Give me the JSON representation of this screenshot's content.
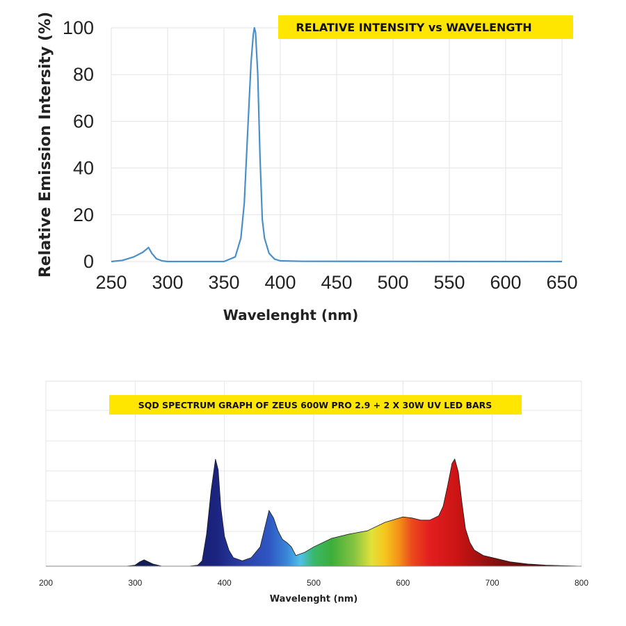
{
  "chart_data": [
    {
      "type": "line",
      "title": "RELATIVE INTENSITY vs WAVELENGTH",
      "xlabel": "Wavelenght (nm)",
      "ylabel": "Relative Emission Intersity (%)",
      "xlim": [
        250,
        650
      ],
      "ylim": [
        0,
        100
      ],
      "xticks": [
        "250",
        "300",
        "350",
        "400",
        "450",
        "500",
        "550",
        "600",
        "650"
      ],
      "yticks": [
        "0",
        "20",
        "40",
        "60",
        "80",
        "100"
      ],
      "grid": true,
      "colors": {
        "line": "#4a90c8",
        "banner": "#ffe600"
      },
      "series": [
        {
          "x": [
            250,
            260,
            270,
            278,
            283,
            286,
            290,
            295,
            300,
            320,
            350,
            360,
            365,
            368,
            371,
            374,
            376,
            377,
            378,
            380,
            382,
            384,
            386,
            390,
            395,
            400,
            420,
            500,
            650
          ],
          "values": [
            0,
            0.5,
            2,
            4,
            6,
            3.5,
            1.2,
            0.3,
            0,
            0,
            0,
            2,
            10,
            25,
            55,
            85,
            97,
            100,
            98,
            80,
            45,
            18,
            10,
            3.5,
            1,
            0.3,
            0.1,
            0.05,
            0
          ]
        }
      ]
    },
    {
      "type": "area",
      "title": "SQD SPECTRUM GRAPH OF ZEUS 600W PRO 2.9 + 2 X 30W UV LED BARS",
      "xlabel": "Wavelenght (nm)",
      "ylabel": "",
      "xlim": [
        200,
        800
      ],
      "ylim": [
        0,
        100
      ],
      "xticks": [
        "200",
        "300",
        "400",
        "500",
        "600",
        "700",
        "800"
      ],
      "grid": true,
      "colors": {
        "fill_gradient": "spectrum",
        "banner": "#ffe600"
      },
      "series": [
        {
          "x": [
            290,
            300,
            305,
            310,
            315,
            320,
            330,
            360,
            370,
            375,
            380,
            385,
            390,
            393,
            396,
            400,
            405,
            410,
            420,
            430,
            440,
            445,
            450,
            455,
            460,
            465,
            470,
            475,
            480,
            490,
            500,
            520,
            540,
            560,
            580,
            600,
            610,
            620,
            630,
            640,
            645,
            650,
            655,
            658,
            662,
            666,
            670,
            675,
            680,
            690,
            700,
            720,
            740,
            760,
            800
          ],
          "values": [
            0,
            1,
            4,
            6,
            4,
            2,
            0,
            0,
            1,
            5,
            30,
            70,
            100,
            90,
            55,
            28,
            15,
            8,
            5,
            8,
            18,
            35,
            52,
            45,
            33,
            25,
            22,
            18,
            10,
            13,
            18,
            26,
            30,
            33,
            41,
            46,
            45,
            43,
            43,
            47,
            56,
            75,
            96,
            100,
            88,
            60,
            35,
            22,
            15,
            10,
            8,
            4,
            2,
            1,
            0
          ]
        }
      ]
    }
  ]
}
